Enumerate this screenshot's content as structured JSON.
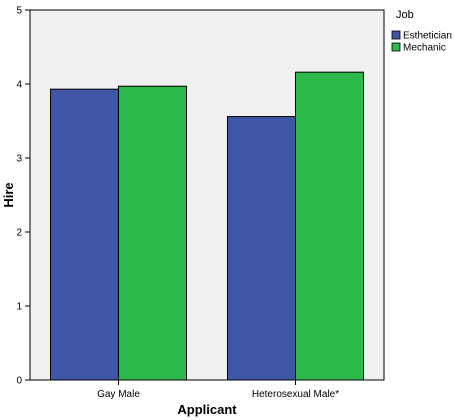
{
  "chart_data": {
    "type": "bar",
    "categories": [
      "Gay Male",
      "Heterosexual Male*"
    ],
    "series": [
      {
        "name": "Esthetician",
        "values": [
          3.93,
          3.56
        ],
        "color": "#3f56a6"
      },
      {
        "name": "Mechanic",
        "values": [
          3.97,
          4.16
        ],
        "color": "#2cb84a"
      }
    ],
    "xlabel": "Applicant",
    "ylabel": "Hire",
    "ylim": [
      0,
      5
    ],
    "yticks": [
      0,
      1,
      2,
      3,
      4,
      5
    ],
    "legend_title": "Job",
    "legend_position": "top-right",
    "grid": false,
    "plot_background": "#f0f0f0"
  }
}
